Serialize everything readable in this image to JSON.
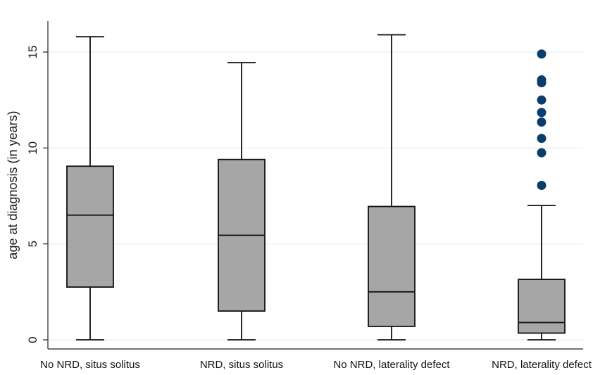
{
  "chart_data": {
    "type": "box",
    "title": "",
    "xlabel": "",
    "ylabel": "age at diagnosis (in years)",
    "ylim": [
      0,
      16.5
    ],
    "yticks": [
      0,
      5,
      10,
      15
    ],
    "grid": true,
    "categories": [
      "No NRD, situs solitus",
      "NRD, situs solitus",
      "No NRD, laterality defect",
      "NRD, laterality defect"
    ],
    "boxes": [
      {
        "whisker_low": 0.0,
        "q1": 2.75,
        "median": 6.5,
        "q3": 9.05,
        "whisker_high": 15.8,
        "outliers": []
      },
      {
        "whisker_low": 0.0,
        "q1": 1.5,
        "median": 5.45,
        "q3": 9.4,
        "whisker_high": 14.45,
        "outliers": []
      },
      {
        "whisker_low": 0.0,
        "q1": 0.7,
        "median": 2.5,
        "q3": 6.95,
        "whisker_high": 15.9,
        "outliers": []
      },
      {
        "whisker_low": 0.0,
        "q1": 0.35,
        "median": 0.9,
        "q3": 3.15,
        "whisker_high": 7.0,
        "outliers": [
          8.05,
          9.75,
          10.5,
          11.35,
          11.85,
          12.5,
          13.4,
          13.55,
          14.9
        ]
      }
    ],
    "colors": {
      "box_fill": "#a6a6a6",
      "outlier": "#0a3d6b",
      "grid": "#e4eef2"
    }
  }
}
